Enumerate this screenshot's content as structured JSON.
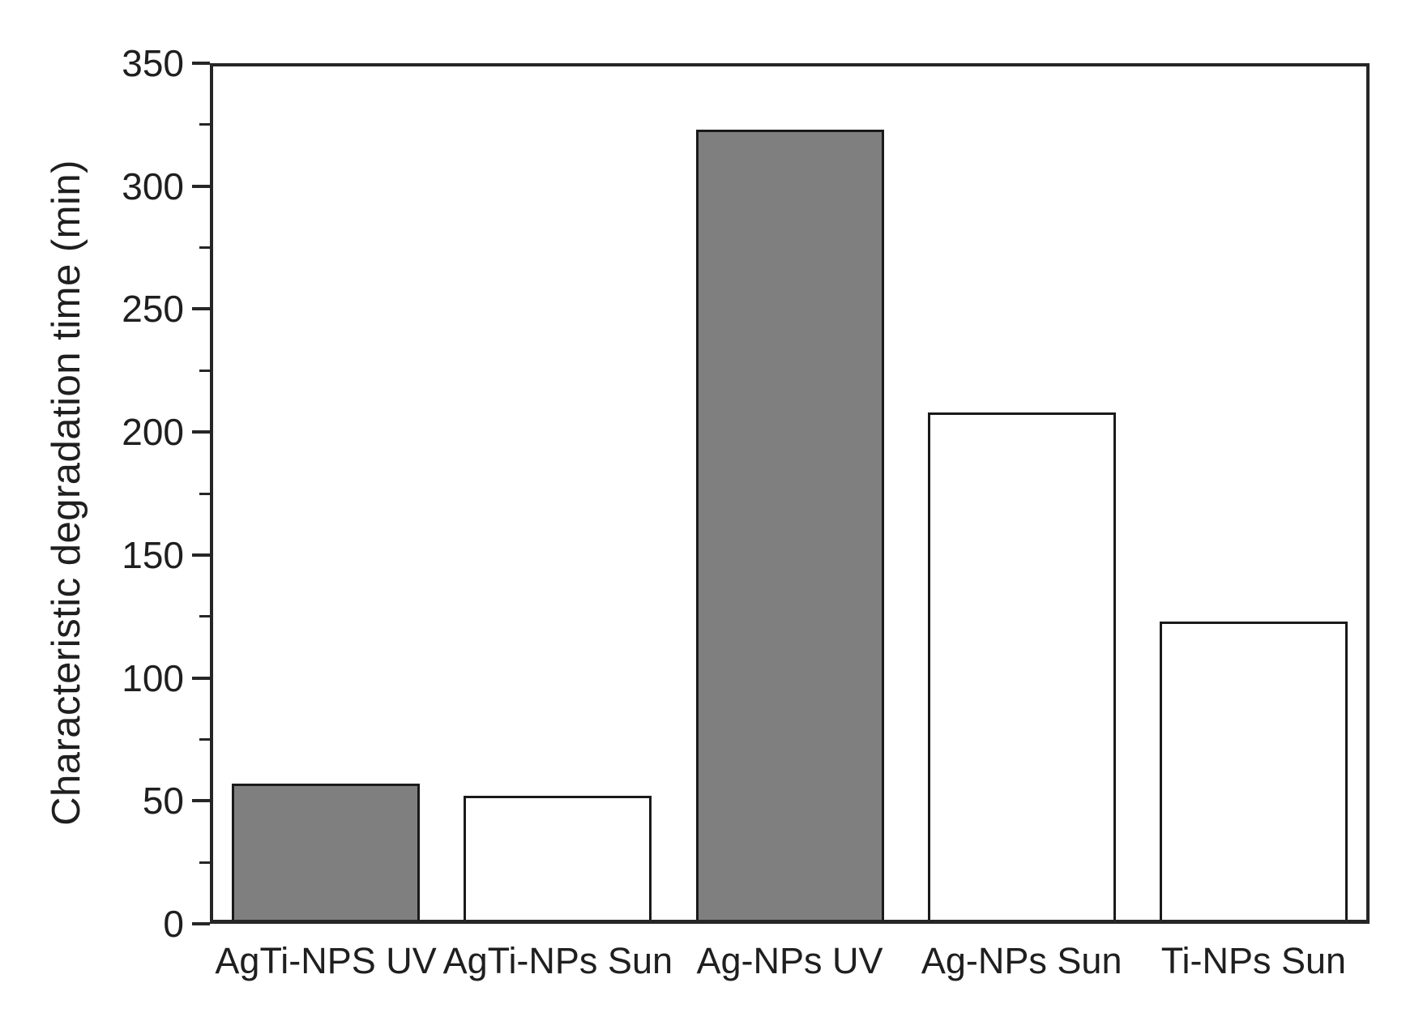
{
  "chart_data": {
    "type": "bar",
    "title": "",
    "xlabel": "",
    "ylabel": "Characteristic degradation time (min)",
    "categories": [
      "AgTi-NPS UV",
      "AgTi-NPs Sun",
      "Ag-NPs UV",
      "Ag-NPs Sun",
      "Ti-NPs Sun"
    ],
    "values": [
      57,
      52,
      323,
      208,
      123
    ],
    "bar_fills": [
      "#7f7f7f",
      "#ffffff",
      "#7f7f7f",
      "#ffffff",
      "#ffffff"
    ],
    "bar_edge_color": "#1a1a1a",
    "axis_color": "#262626",
    "text_color": "#1f1f1f",
    "background_color": "#ffffff",
    "ylim": [
      0,
      350
    ],
    "yticks": [
      0,
      50,
      100,
      150,
      200,
      250,
      300,
      350
    ],
    "yminorticks": [
      25,
      75,
      125,
      175,
      225,
      275,
      325
    ],
    "grid": false,
    "legend": "none",
    "frame": "full-box"
  }
}
